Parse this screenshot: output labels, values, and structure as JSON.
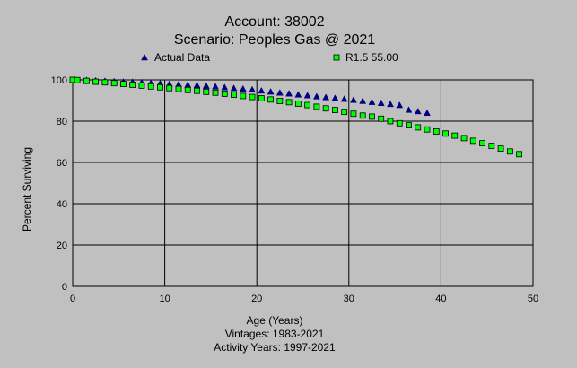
{
  "chart_data": {
    "type": "scatter",
    "title": "Account: 38002",
    "subtitle": "Scenario: Peoples Gas @ 2021",
    "xlabel": "Age (Years)",
    "ylabel": "Percent Surviving",
    "footnotes": [
      "Vintages: 1983-2021",
      "Activity Years: 1997-2021"
    ],
    "xlim": [
      0,
      50
    ],
    "ylim": [
      0,
      100
    ],
    "xticks": [
      0,
      10,
      20,
      30,
      40,
      50
    ],
    "yticks": [
      0,
      20,
      40,
      60,
      80,
      100
    ],
    "grid": true,
    "legend_position": "top",
    "series": [
      {
        "name": "Actual Data",
        "marker": "triangle",
        "color": "#000080",
        "x": [
          0,
          1.5,
          2.5,
          3.5,
          4.5,
          5.5,
          6.5,
          7.5,
          8.5,
          9.5,
          10.5,
          11.5,
          12.5,
          13.5,
          14.5,
          15.5,
          16.5,
          17.5,
          18.5,
          19.5,
          20.5,
          21.5,
          22.5,
          23.5,
          24.5,
          25.5,
          26.5,
          27.5,
          28.5,
          29.5,
          30.5,
          31.5,
          32.5,
          33.5,
          34.5,
          35.5,
          36.5,
          37.5,
          38.5
        ],
        "y": [
          100,
          99.9,
          99.7,
          99.5,
          99.3,
          99.1,
          99.0,
          98.8,
          98.5,
          98.3,
          98.0,
          97.8,
          97.6,
          97.4,
          97.1,
          96.8,
          96.4,
          96.0,
          95.7,
          95.3,
          94.8,
          94.3,
          93.8,
          93.4,
          92.9,
          92.5,
          92.0,
          91.6,
          91.2,
          90.8,
          90.3,
          89.8,
          89.3,
          88.8,
          88.3,
          87.8,
          85.5,
          84.8,
          84.0
        ]
      },
      {
        "name": "R1.5 55.00",
        "marker": "square",
        "color": "#00ff00",
        "x": [
          0,
          0.5,
          1.5,
          2.5,
          3.5,
          4.5,
          5.5,
          6.5,
          7.5,
          8.5,
          9.5,
          10.5,
          11.5,
          12.5,
          13.5,
          14.5,
          15.5,
          16.5,
          17.5,
          18.5,
          19.5,
          20.5,
          21.5,
          22.5,
          23.5,
          24.5,
          25.5,
          26.5,
          27.5,
          28.5,
          29.5,
          30.5,
          31.5,
          32.5,
          33.5,
          34.5,
          35.5,
          36.5,
          37.5,
          38.5,
          39.5,
          40.5,
          41.5,
          42.5,
          43.5,
          44.5,
          45.5,
          46.5,
          47.5,
          48.5
        ],
        "y": [
          100,
          99.9,
          99.5,
          99.1,
          98.8,
          98.4,
          98.0,
          97.6,
          97.2,
          96.8,
          96.4,
          96.0,
          95.6,
          95.1,
          94.7,
          94.2,
          93.8,
          93.3,
          92.8,
          92.2,
          91.7,
          91.1,
          90.5,
          89.8,
          89.2,
          88.5,
          87.8,
          87.0,
          86.2,
          85.4,
          84.5,
          83.6,
          82.7,
          82.2,
          81.2,
          80.0,
          79.0,
          78.0,
          77.0,
          76.0,
          75.0,
          74.0,
          73.0,
          71.8,
          70.5,
          69.3,
          68.0,
          66.7,
          65.3,
          64.0
        ]
      }
    ]
  }
}
